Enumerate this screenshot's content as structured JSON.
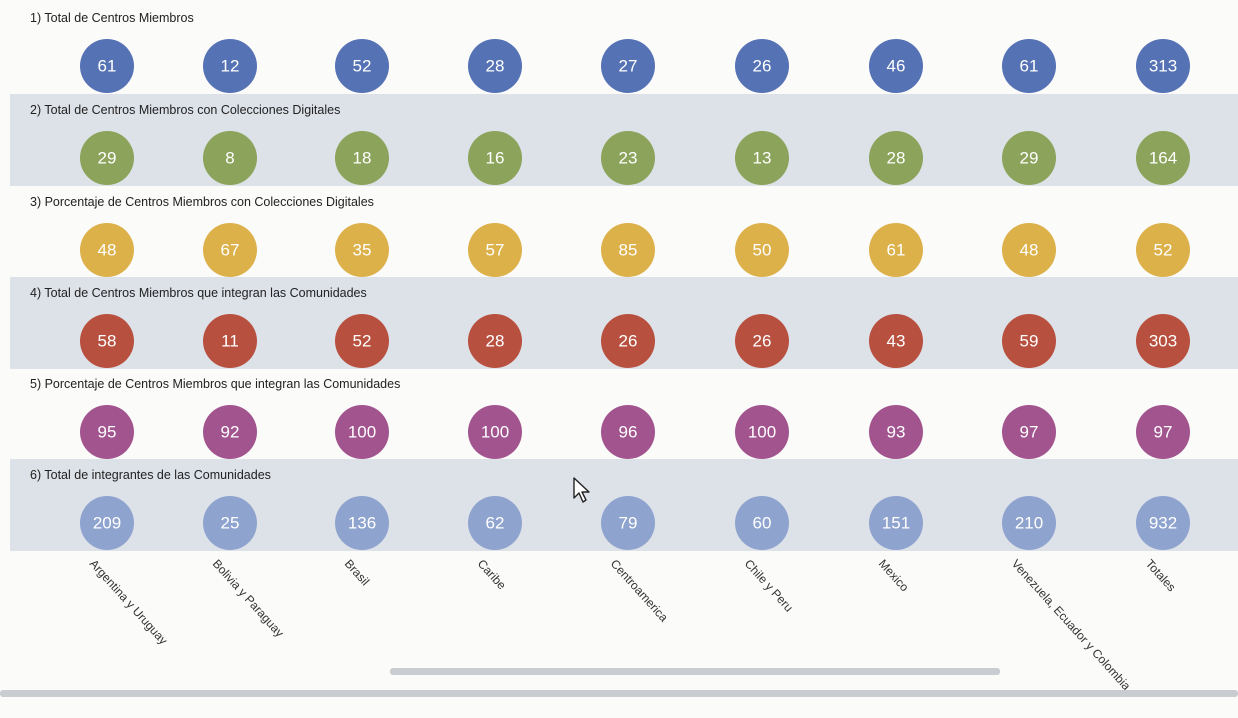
{
  "chart_data": {
    "type": "bubble-table",
    "categories": [
      "Argentina y Uruguay",
      "Bolivia y Paraguay",
      "Brasil",
      "Caribe",
      "Centroamerica",
      "Chile y Peru",
      "Mexico",
      "Venezuela, Ecuador y Colombia",
      "Totales"
    ],
    "series": [
      {
        "name": "1) Total de Centros Miembros",
        "color": "#5572b5",
        "values": [
          61,
          12,
          52,
          28,
          27,
          26,
          46,
          61,
          313
        ]
      },
      {
        "name": "2) Total de Centros Miembros con Colecciones Digitales",
        "color": "#8ba35a",
        "values": [
          29,
          8,
          18,
          16,
          23,
          13,
          28,
          29,
          164
        ]
      },
      {
        "name": "3) Porcentaje de Centros Miembros con Colecciones Digitales",
        "color": "#ddb14a",
        "values": [
          48,
          67,
          35,
          57,
          85,
          50,
          61,
          48,
          52
        ]
      },
      {
        "name": "4) Total de Centros Miembros que integran las Comunidades",
        "color": "#b8503f",
        "values": [
          58,
          11,
          52,
          28,
          26,
          26,
          43,
          59,
          303
        ]
      },
      {
        "name": "5) Porcentaje de Centros Miembros que integran las Comunidades",
        "color": "#a2548f",
        "values": [
          95,
          92,
          100,
          100,
          96,
          100,
          93,
          97,
          97
        ]
      },
      {
        "name": "6) Total de integrantes de las Comunidades",
        "color": "#8fa3cf",
        "values": [
          209,
          25,
          136,
          62,
          79,
          60,
          151,
          210,
          932
        ]
      }
    ],
    "row_shading": [
      false,
      true,
      false,
      true,
      false,
      true
    ]
  },
  "colors": {
    "band": "#dde1e8",
    "background": "#fbfbfa"
  },
  "cursor": {
    "icon": "mouse-pointer-icon"
  }
}
